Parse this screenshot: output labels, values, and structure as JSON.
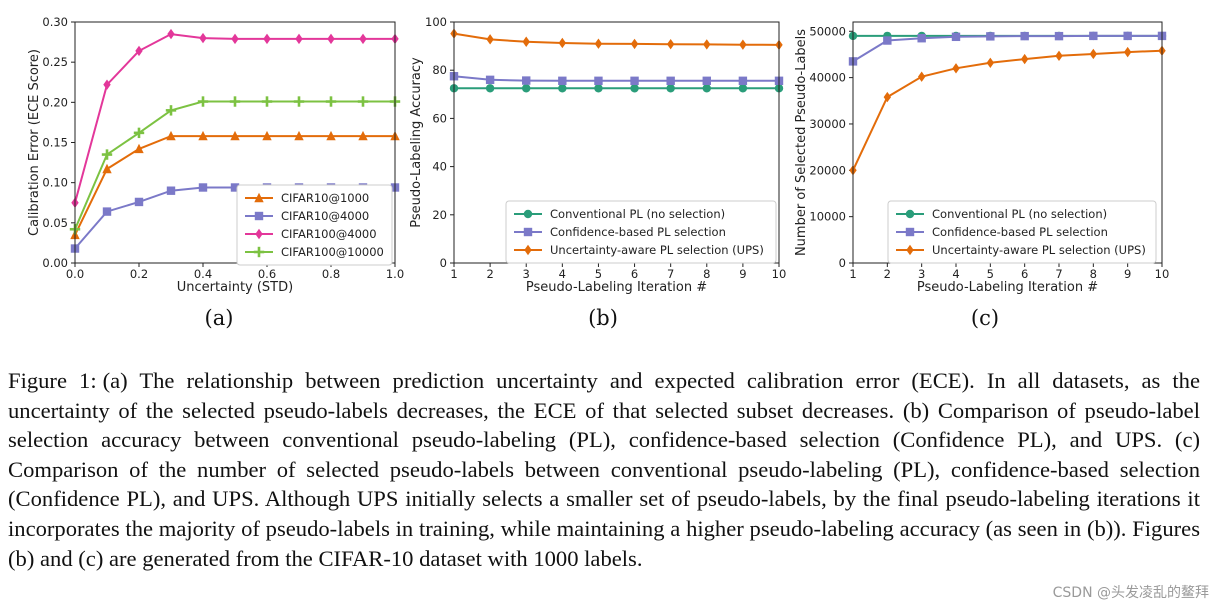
{
  "chart_data": [
    {
      "type": "line",
      "xlabel": "Uncertainty (STD)",
      "ylabel": "Calibration Error (ECE Score)",
      "xlim": [
        0.0,
        1.0
      ],
      "ylim": [
        0.0,
        0.3
      ],
      "xticks": [
        "0.0",
        "0.2",
        "0.4",
        "0.6",
        "0.8",
        "1.0"
      ],
      "yticks": [
        "0.00",
        "0.05",
        "0.10",
        "0.15",
        "0.20",
        "0.25",
        "0.30"
      ],
      "legend_position": "bottom-right",
      "series": [
        {
          "name": "CIFAR10@1000",
          "color": "#e36c0a",
          "marker": "triangle",
          "x": [
            0.0,
            0.1,
            0.2,
            0.3,
            0.4,
            0.5,
            0.6,
            0.7,
            0.8,
            0.9,
            1.0
          ],
          "y": [
            0.035,
            0.117,
            0.142,
            0.158,
            0.158,
            0.158,
            0.158,
            0.158,
            0.158,
            0.158,
            0.158
          ]
        },
        {
          "name": "CIFAR10@4000",
          "color": "#7b79c8",
          "marker": "square",
          "x": [
            0.0,
            0.1,
            0.2,
            0.3,
            0.4,
            0.5,
            0.6,
            0.7,
            0.8,
            0.9,
            1.0
          ],
          "y": [
            0.018,
            0.064,
            0.076,
            0.09,
            0.094,
            0.094,
            0.094,
            0.094,
            0.094,
            0.094,
            0.094
          ]
        },
        {
          "name": "CIFAR100@4000",
          "color": "#e3379a",
          "marker": "diamond",
          "x": [
            0.0,
            0.1,
            0.2,
            0.3,
            0.4,
            0.5,
            0.6,
            0.7,
            0.8,
            0.9,
            1.0
          ],
          "y": [
            0.075,
            0.222,
            0.264,
            0.285,
            0.28,
            0.279,
            0.279,
            0.279,
            0.279,
            0.279,
            0.279
          ]
        },
        {
          "name": "CIFAR100@10000",
          "color": "#7cc242",
          "marker": "plus",
          "x": [
            0.0,
            0.1,
            0.2,
            0.3,
            0.4,
            0.5,
            0.6,
            0.7,
            0.8,
            0.9,
            1.0
          ],
          "y": [
            0.042,
            0.135,
            0.162,
            0.19,
            0.201,
            0.201,
            0.201,
            0.201,
            0.201,
            0.201,
            0.201
          ]
        }
      ]
    },
    {
      "type": "line",
      "xlabel": "Pseudo-Labeling Iteration #",
      "ylabel": "Pseudo-Labeling Accuracy",
      "xlim": [
        1,
        10
      ],
      "ylim": [
        0,
        100
      ],
      "xticks": [
        "1",
        "2",
        "3",
        "4",
        "5",
        "6",
        "7",
        "8",
        "9",
        "10"
      ],
      "yticks": [
        "0",
        "20",
        "40",
        "60",
        "80",
        "100"
      ],
      "legend_position": "bottom-right",
      "series": [
        {
          "name": "Conventional PL (no selection)",
          "color": "#2a9d7a",
          "marker": "circle",
          "x": [
            1,
            2,
            3,
            4,
            5,
            6,
            7,
            8,
            9,
            10
          ],
          "y": [
            72.5,
            72.5,
            72.5,
            72.5,
            72.5,
            72.5,
            72.5,
            72.5,
            72.5,
            72.5
          ]
        },
        {
          "name": "Confidence-based PL selection",
          "color": "#7b79c8",
          "marker": "square",
          "x": [
            1,
            2,
            3,
            4,
            5,
            6,
            7,
            8,
            9,
            10
          ],
          "y": [
            77.5,
            76.0,
            75.7,
            75.6,
            75.6,
            75.6,
            75.6,
            75.6,
            75.6,
            75.6
          ]
        },
        {
          "name": "Uncertainty-aware PL selection (UPS)",
          "color": "#e36c0a",
          "marker": "diamond",
          "x": [
            1,
            2,
            3,
            4,
            5,
            6,
            7,
            8,
            9,
            10
          ],
          "y": [
            95.2,
            92.8,
            91.8,
            91.3,
            91.0,
            90.9,
            90.8,
            90.7,
            90.6,
            90.5
          ]
        }
      ]
    },
    {
      "type": "line",
      "xlabel": "Pseudo-Labeling Iteration #",
      "ylabel": "Number of Selected Pseudo-Labels",
      "xlim": [
        1,
        10
      ],
      "ylim": [
        0,
        52000
      ],
      "xticks": [
        "1",
        "2",
        "3",
        "4",
        "5",
        "6",
        "7",
        "8",
        "9",
        "10"
      ],
      "yticks": [
        "0",
        "10000",
        "20000",
        "30000",
        "40000",
        "50000"
      ],
      "legend_position": "bottom-right",
      "series": [
        {
          "name": "Conventional PL (no selection)",
          "color": "#2a9d7a",
          "marker": "circle",
          "x": [
            1,
            2,
            3,
            4,
            5,
            6,
            7,
            8,
            9,
            10
          ],
          "y": [
            49000,
            49000,
            49000,
            49000,
            49000,
            49000,
            49000,
            49000,
            49000,
            49000
          ]
        },
        {
          "name": "Confidence-based PL selection",
          "color": "#7b79c8",
          "marker": "square",
          "x": [
            1,
            2,
            3,
            4,
            5,
            6,
            7,
            8,
            9,
            10
          ],
          "y": [
            43500,
            48000,
            48500,
            48800,
            48900,
            48950,
            48950,
            49000,
            49000,
            49000
          ]
        },
        {
          "name": "Uncertainty-aware PL selection (UPS)",
          "color": "#e36c0a",
          "marker": "diamond",
          "x": [
            1,
            2,
            3,
            4,
            5,
            6,
            7,
            8,
            9,
            10
          ],
          "y": [
            20000,
            35800,
            40200,
            42000,
            43200,
            44000,
            44700,
            45100,
            45500,
            45800
          ]
        }
      ]
    }
  ],
  "subcaptions": [
    "(a)",
    "(b)",
    "(c)"
  ],
  "caption": {
    "label": "Figure 1:",
    "text": "(a) The relationship between prediction uncertainty and expected calibration error (ECE). In all datasets, as the uncertainty of the selected pseudo-labels decreases, the ECE of that selected subset decreases. (b) Comparison of pseudo-label selection accuracy between conventional pseudo-labeling (PL), confidence-based selection (Confidence PL), and UPS. (c) Comparison of the number of selected pseudo-labels between conventional pseudo-labeling (PL), confidence-based selection (Confidence PL), and UPS. Although UPS initially selects a smaller set of pseudo-labels, by the final pseudo-labeling iterations it incorporates the majority of pseudo-labels in training, while maintaining a higher pseudo-labeling accuracy (as seen in (b)). Figures (b) and (c) are generated from the CIFAR-10 dataset with 1000 labels."
  },
  "watermark": "CSDN @头发凌乱的鳌拜"
}
